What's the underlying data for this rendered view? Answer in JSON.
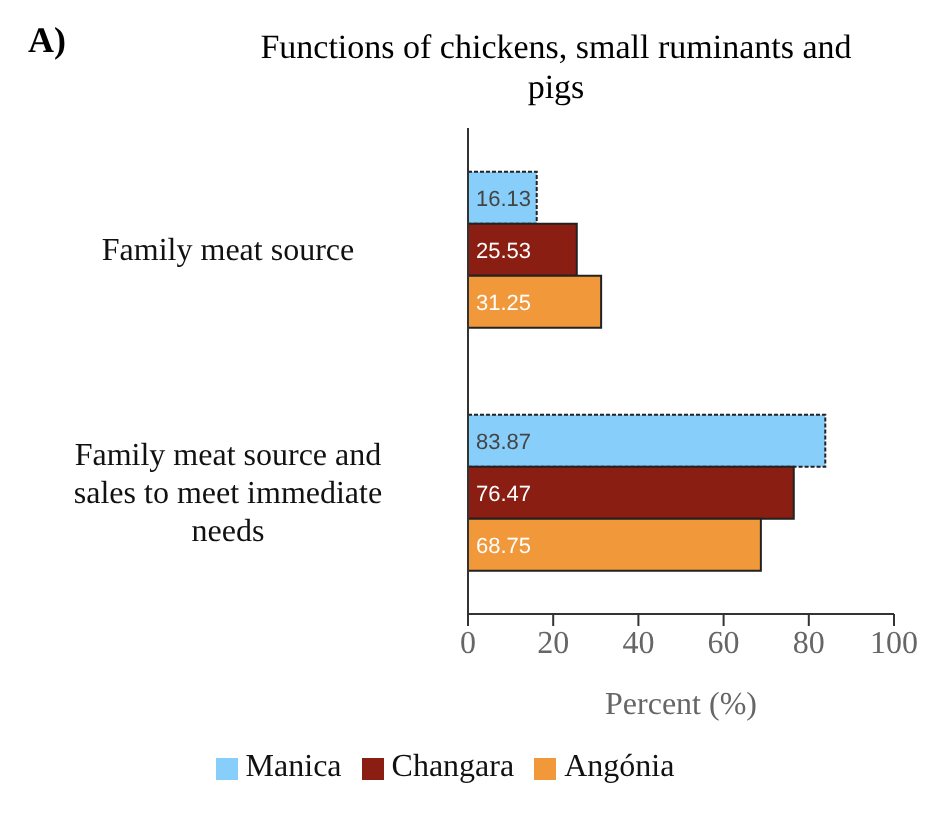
{
  "chart_data": {
    "type": "bar",
    "orientation": "horizontal",
    "title": "Functions of chickens, small ruminants and pigs",
    "annotations": [
      "A)"
    ],
    "xlabel": "Percent (%)",
    "categories": [
      "Family meat source",
      "Family meat source and sales to meet immediate needs"
    ],
    "series": [
      {
        "name": "Manica",
        "color": "#87cefa",
        "values": [
          16.13,
          83.87
        ]
      },
      {
        "name": "Changara",
        "color": "#8b1e12",
        "values": [
          25.53,
          76.47
        ]
      },
      {
        "name": "Angónia",
        "color": "#f0983a",
        "values": [
          31.25,
          68.75
        ]
      }
    ],
    "xlim": [
      0,
      100
    ],
    "xticks": [
      0,
      20,
      40,
      60,
      80,
      100
    ],
    "data_labels": true,
    "legend": "bottom",
    "grid": false
  }
}
